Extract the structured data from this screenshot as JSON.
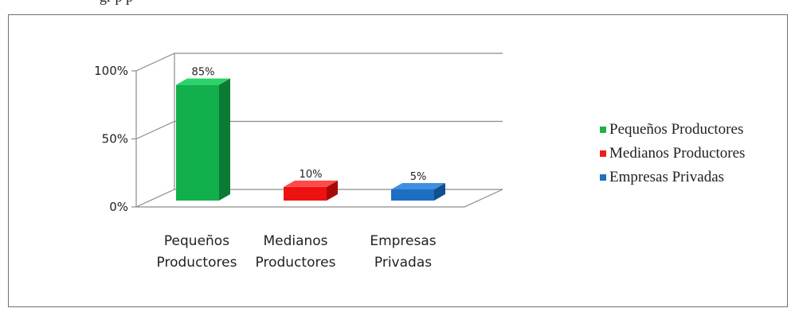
{
  "caption": "gr       p                          p",
  "chart_data": {
    "type": "bar",
    "style": "3d-column",
    "categories": [
      "Pequeños Productores",
      "Medianos Productores",
      "Empresas Privadas"
    ],
    "category_lines": [
      [
        "Pequeños",
        "Productores"
      ],
      [
        "Medianos",
        "Productores"
      ],
      [
        "Empresas",
        "Privadas"
      ]
    ],
    "values": [
      85,
      10,
      5
    ],
    "data_labels": [
      "85%",
      "10%",
      "5%"
    ],
    "y_ticks": [
      "0%",
      "50%",
      "100%"
    ],
    "ylim": [
      0,
      100
    ],
    "grid": true,
    "legend_position": "right",
    "legend": [
      "Pequeños Productores",
      "Medianos Productores",
      "Empresas Privadas"
    ],
    "colors": [
      {
        "front": "#12b04c",
        "top": "#2bd36a",
        "side": "#0c7a34"
      },
      {
        "front": "#ee1111",
        "top": "#ff4a4a",
        "side": "#a80a0a"
      },
      {
        "front": "#1d6fc2",
        "top": "#3e8fe0",
        "side": "#124f8e"
      }
    ],
    "swatch_colors": [
      "#1fb14b",
      "#ee1c1c",
      "#1d6fc2"
    ]
  }
}
